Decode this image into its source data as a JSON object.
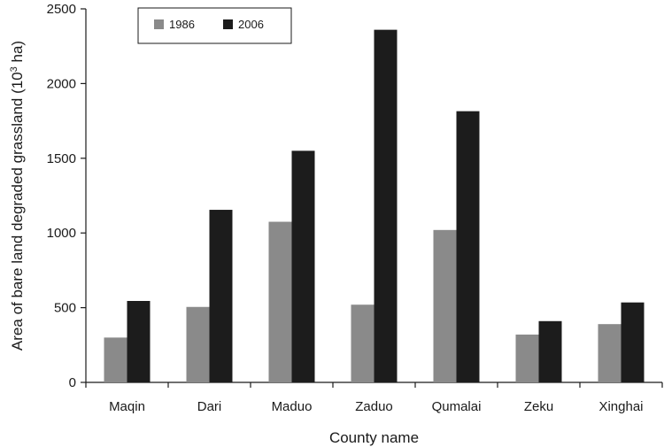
{
  "chart_data": {
    "type": "bar",
    "categories": [
      "Maqin",
      "Dari",
      "Maduo",
      "Zaduo",
      "Qumalai",
      "Zeku",
      "Xinghai"
    ],
    "series": [
      {
        "name": "1986",
        "color": "#8a8a8a",
        "values": [
          300,
          505,
          1075,
          520,
          1020,
          320,
          390
        ]
      },
      {
        "name": "2006",
        "color": "#1c1c1c",
        "values": [
          545,
          1155,
          1550,
          2360,
          1815,
          410,
          535
        ]
      }
    ],
    "xlabel": "County name",
    "ylabel_main": "Area of bare land degraded grassland (10",
    "ylabel_sup": "3",
    "ylabel_end": " ha)",
    "ylim": [
      0,
      2500
    ],
    "yticks": [
      0,
      500,
      1000,
      1500,
      2000,
      2500
    ],
    "legend_position": "top-left",
    "grid": false
  }
}
